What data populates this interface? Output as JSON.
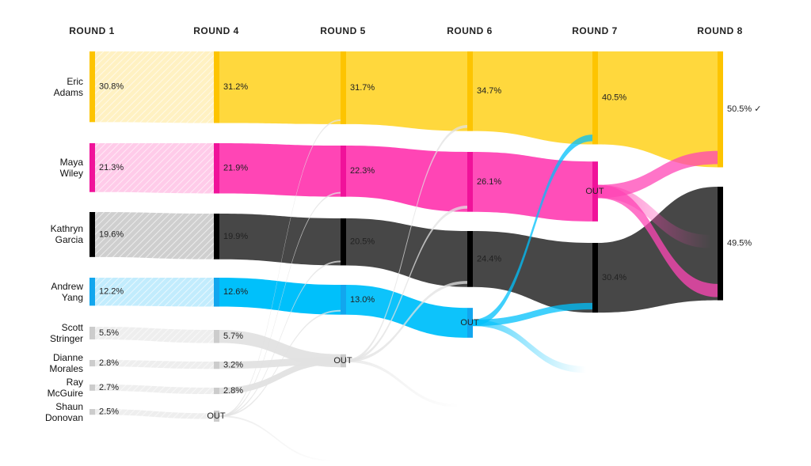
{
  "chart_data": {
    "type": "sankey",
    "rounds": [
      "ROUND 1",
      "ROUND 4",
      "ROUND 5",
      "ROUND 6",
      "ROUND 7",
      "ROUND 8"
    ],
    "out_label": "OUT",
    "series": [
      {
        "name": "Eric Adams",
        "color": "#ffd83d",
        "bar_color": "#fdc400",
        "light_color": "#fff1c2",
        "values": [
          30.8,
          31.2,
          31.7,
          34.7,
          40.5,
          50.5
        ],
        "value_labels": [
          "30.8%",
          "31.2%",
          "31.7%",
          "34.7%",
          "40.5%",
          "50.5% ✓"
        ]
      },
      {
        "name": "Maya Wiley",
        "color": "#ff45b5",
        "bar_color": "#f0129a",
        "light_color": "#ffcbe9",
        "values": [
          21.3,
          21.9,
          22.3,
          26.1
        ],
        "value_labels": [
          "21.3%",
          "21.9%",
          "22.3%",
          "26.1%"
        ]
      },
      {
        "name": "Kathryn Garcia",
        "color": "#474747",
        "bar_color": "#000000",
        "light_color": "#cfcfcf",
        "values": [
          19.6,
          19.9,
          20.5,
          24.4,
          30.4,
          49.5
        ],
        "value_labels": [
          "19.6%",
          "19.9%",
          "20.5%",
          "24.4%",
          "30.4%",
          "49.5%"
        ]
      },
      {
        "name": "Andrew Yang",
        "color": "#00c0fb",
        "bar_color": "#12a6ee",
        "light_color": "#c2ecfd",
        "values": [
          12.2,
          12.6,
          13.0
        ],
        "value_labels": [
          "12.2%",
          "12.6%",
          "13.0%"
        ]
      },
      {
        "name": "Scott Stringer",
        "color": "#e2e2e2",
        "bar_color": "#cccccc",
        "light_color": "#eeeeee",
        "values": [
          5.5,
          5.7
        ],
        "value_labels": [
          "5.5%",
          "5.7%"
        ]
      },
      {
        "name": "Dianne Morales",
        "color": "#e2e2e2",
        "bar_color": "#cccccc",
        "light_color": "#eeeeee",
        "values": [
          2.8,
          3.2
        ],
        "value_labels": [
          "2.8%",
          "3.2%"
        ]
      },
      {
        "name": "Ray McGuire",
        "color": "#e2e2e2",
        "bar_color": "#cccccc",
        "light_color": "#eeeeee",
        "values": [
          2.7,
          2.8
        ],
        "value_labels": [
          "2.7%",
          "2.8%"
        ]
      },
      {
        "name": "Shaun Donovan",
        "color": "#e2e2e2",
        "bar_color": "#cccccc",
        "light_color": "#eeeeee",
        "values": [
          2.5
        ],
        "value_labels": [
          "2.5%"
        ]
      }
    ]
  }
}
